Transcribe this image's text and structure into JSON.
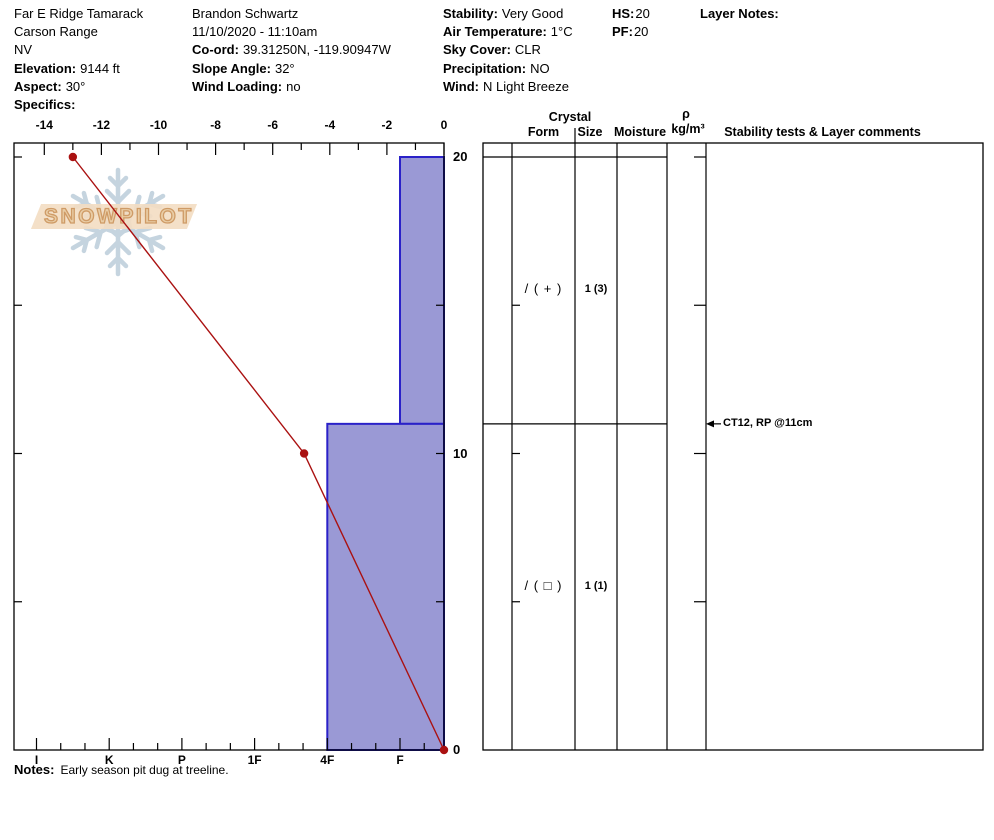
{
  "header": {
    "site": {
      "name": "Far E Ridge Tamarack",
      "range": "Carson Range",
      "state": "NV",
      "elevation_label": "Elevation:",
      "elevation_value": "9144 ft",
      "aspect_label": "Aspect:",
      "aspect_value": "30°",
      "specifics_label": "Specifics:",
      "specifics_value": ""
    },
    "observer": {
      "name": "Brandon Schwartz",
      "datetime": "11/10/2020 - 11:10am",
      "coord_label": "Co-ord:",
      "coord_value": "39.31250N, -119.90947W",
      "slope_label": "Slope Angle:",
      "slope_value": "32°",
      "wind_loading_label": "Wind Loading:",
      "wind_loading_value": "no"
    },
    "conditions": {
      "stability_label": "Stability:",
      "stability_value": "Very Good",
      "air_temp_label": "Air Temperature:",
      "air_temp_value": "1°C",
      "sky_label": "Sky Cover:",
      "sky_value": "CLR",
      "precip_label": "Precipitation:",
      "precip_value": "NO",
      "wind_label": "Wind:",
      "wind_value": "N Light Breeze"
    },
    "totals": {
      "hs_label": "HS:",
      "hs_value": "20",
      "pf_label": "PF:",
      "pf_value": "20"
    },
    "layer_notes_label": "Layer Notes:"
  },
  "watermark": {
    "text": "SNOWPILOT"
  },
  "table": {
    "header": {
      "crystal": "Crystal",
      "form": "Form",
      "size": "Size",
      "moisture": "Moisture",
      "rho": "ρ",
      "rho_unit": "kg/m³",
      "comments": "Stability tests & Layer comments"
    }
  },
  "notes": {
    "label": "Notes:",
    "text": "Early season pit dug at treeline."
  },
  "chart_data": {
    "type": "snow-profile",
    "temperature_axis": {
      "position": "top",
      "unit": "°C",
      "tick_labels": [
        -14,
        -12,
        -10,
        -8,
        -6,
        -4,
        -2,
        0
      ],
      "range": [
        -14.9,
        0.2
      ]
    },
    "height_axis": {
      "position": "right",
      "unit": "cm",
      "tick_labels": [
        20,
        10,
        0
      ],
      "range": [
        0,
        20
      ],
      "minor_tick_step_cm": 5
    },
    "hardness_axis": {
      "position": "bottom",
      "categories": [
        "I",
        "K",
        "P",
        "1F",
        "4F",
        "F"
      ]
    },
    "temperature_profile": [
      {
        "height_cm": 20,
        "temp_c": -13
      },
      {
        "height_cm": 10,
        "temp_c": -4.9
      },
      {
        "height_cm": 0,
        "temp_c": 0
      }
    ],
    "layers": [
      {
        "top_cm": 20,
        "bottom_cm": 11,
        "hardness": "F",
        "grain_form": "/ ( + )",
        "grain_size": "1 (3)",
        "moisture": "",
        "density": "",
        "comment": ""
      },
      {
        "top_cm": 11,
        "bottom_cm": 0,
        "hardness": "4F",
        "grain_form": "/ ( □ )",
        "grain_size": "1 (1)",
        "moisture": "",
        "density": "",
        "comment": ""
      }
    ],
    "stability_tests": [
      {
        "text": "CT12, RP @11cm",
        "height_cm": 11
      }
    ],
    "grid": false,
    "colors": {
      "bar_fill": "#9a99d5",
      "bar_border": "#2a21c8",
      "temp_line": "#aa1111",
      "axis": "#000000"
    }
  }
}
